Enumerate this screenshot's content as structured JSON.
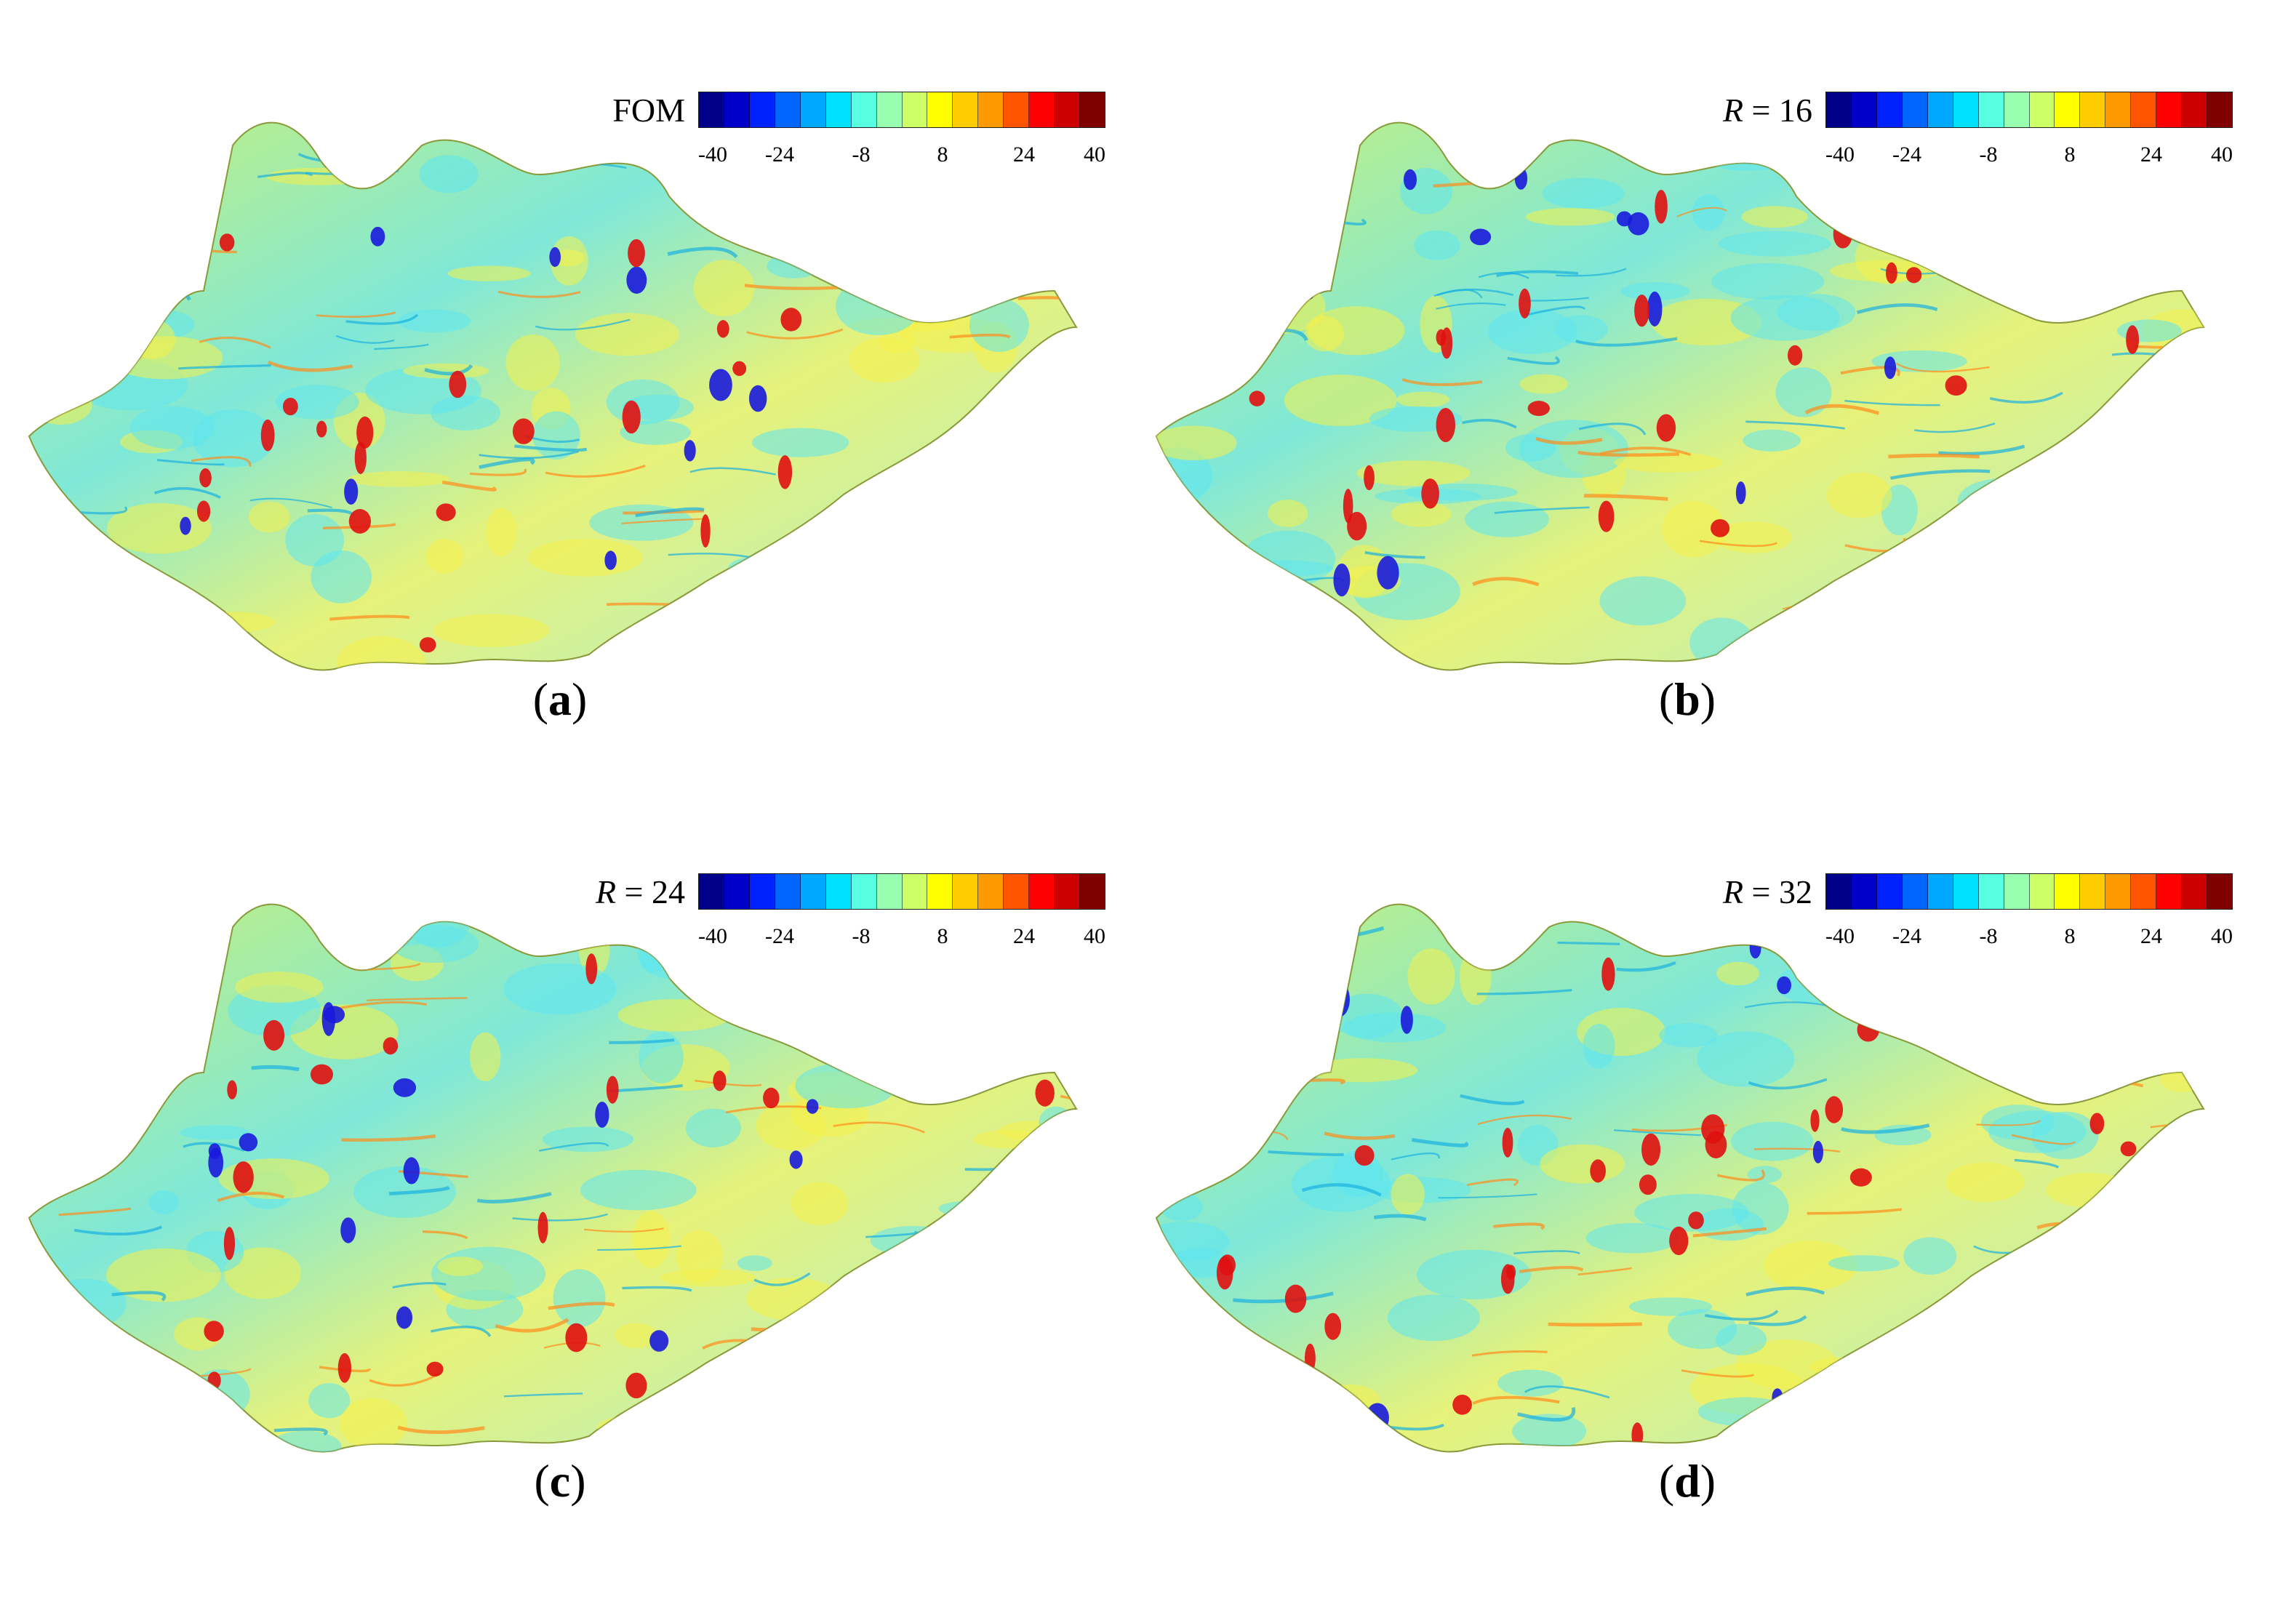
{
  "colormap": {
    "ticks": [
      "-40",
      "-24",
      "-8",
      "8",
      "24",
      "40"
    ],
    "colors": [
      "#00008a",
      "#0000c8",
      "#0022ff",
      "#0066ff",
      "#00a8ff",
      "#00e0ff",
      "#55ffe0",
      "#99ffb0",
      "#ccff66",
      "#ffff00",
      "#ffcc00",
      "#ff9900",
      "#ff5500",
      "#ff0000",
      "#cc0000",
      "#800000"
    ]
  },
  "panels": [
    {
      "id": "a",
      "caption": "a",
      "legend_prefix": "FOM",
      "legend_italic": "",
      "legend_suffix": ""
    },
    {
      "id": "b",
      "caption": "b",
      "legend_prefix": "",
      "legend_italic": "R",
      "legend_suffix": " = 16"
    },
    {
      "id": "c",
      "caption": "c",
      "legend_prefix": "",
      "legend_italic": "R",
      "legend_suffix": " = 24"
    },
    {
      "id": "d",
      "caption": "d",
      "legend_prefix": "",
      "legend_italic": "R",
      "legend_suffix": " = 32"
    }
  ]
}
